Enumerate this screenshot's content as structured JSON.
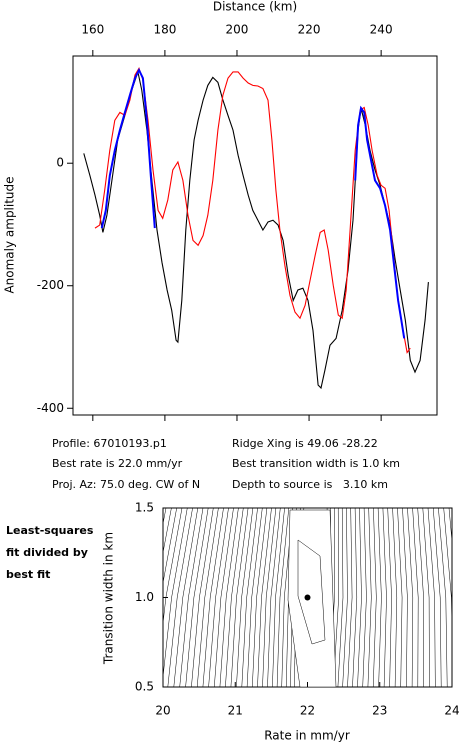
{
  "chart_data": [
    {
      "type": "line",
      "x_label": "Distance (km)",
      "y_label": "Anomaly amplitude",
      "xlim": [
        154.5,
        255.5
      ],
      "xticks": [
        160,
        180,
        200,
        220,
        240
      ],
      "ylim": [
        -411,
        175
      ],
      "yticks": [
        -400,
        -200,
        0
      ],
      "series": [
        {
          "color": "#000000",
          "x": [
            157.5,
            159.2,
            160.6,
            161.9,
            162.8,
            163.9,
            165.3,
            166.9,
            168.9,
            170.8,
            172.5,
            173.6,
            175.0,
            176.4,
            177.8,
            179.2,
            180.6,
            181.9,
            183.1,
            183.6,
            184.7,
            185.8,
            186.9,
            188.1,
            189.2,
            190.6,
            191.9,
            193.3,
            194.7,
            196.1,
            197.5,
            198.9,
            200.3,
            201.7,
            203.1,
            204.4,
            205.8,
            207.2,
            208.6,
            210.0,
            211.4,
            212.8,
            214.2,
            215.6,
            216.9,
            218.3,
            219.7,
            221.1,
            222.5,
            223.3,
            224.4,
            225.8,
            227.5,
            229.2,
            230.8,
            232.2,
            233.6,
            234.4,
            235.6,
            236.9,
            238.3,
            239.7,
            241.1,
            242.5,
            243.9,
            245.3,
            246.7,
            248.1,
            249.4,
            250.8,
            252.2,
            253.1
          ],
          "values": [
            16,
            -20,
            -52,
            -85,
            -113,
            -85,
            -28,
            38,
            78,
            119,
            149,
            119,
            54,
            -28,
            -109,
            -162,
            -207,
            -240,
            -289,
            -292,
            -224,
            -109,
            -28,
            38,
            70,
            103,
            127,
            140,
            132,
            103,
            78,
            54,
            13,
            -20,
            -52,
            -77,
            -93,
            -109,
            -96,
            -93,
            -101,
            -126,
            -183,
            -224,
            -207,
            -204,
            -224,
            -273,
            -362,
            -367,
            -338,
            -297,
            -286,
            -240,
            -175,
            -93,
            54,
            90,
            62,
            21,
            -11,
            -36,
            -69,
            -101,
            -158,
            -207,
            -256,
            -322,
            -341,
            -322,
            -256,
            -194
          ]
        },
        {
          "color": "#ff0000",
          "x": [
            160.6,
            161.9,
            163.3,
            164.7,
            166.1,
            167.5,
            168.9,
            170.3,
            171.7,
            172.8,
            173.9,
            175.3,
            176.7,
            178.1,
            179.4,
            180.8,
            182.2,
            183.6,
            185.0,
            186.4,
            187.8,
            189.2,
            190.6,
            191.9,
            193.3,
            194.7,
            196.1,
            197.5,
            198.9,
            200.3,
            201.7,
            203.1,
            204.4,
            205.8,
            207.2,
            208.6,
            209.7,
            210.8,
            211.9,
            213.3,
            214.7,
            216.1,
            217.5,
            218.9,
            220.3,
            221.7,
            223.1,
            224.2,
            225.3,
            226.7,
            228.1,
            229.2,
            230.3,
            231.4,
            232.8,
            234.2,
            235.3,
            236.4,
            237.5,
            238.9,
            240.0,
            241.1,
            242.2,
            243.3,
            244.7,
            246.1,
            247.2,
            248.1
          ],
          "values": [
            -106,
            -101,
            -44,
            21,
            70,
            83,
            78,
            103,
            144,
            155,
            136,
            70,
            -11,
            -77,
            -90,
            -60,
            -11,
            2,
            -28,
            -85,
            -126,
            -134,
            -118,
            -85,
            -28,
            54,
            111,
            139,
            149,
            149,
            139,
            131,
            127,
            126,
            122,
            103,
            38,
            -44,
            -109,
            -167,
            -216,
            -243,
            -253,
            -232,
            -191,
            -150,
            -113,
            -109,
            -142,
            -199,
            -248,
            -253,
            -207,
            -109,
            21,
            87,
            91,
            62,
            21,
            -20,
            -36,
            -41,
            -77,
            -142,
            -224,
            -273,
            -309,
            -302
          ]
        },
        {
          "color": "#0000ff",
          "x": [
            162.5,
            163.6,
            164.7,
            166.1,
            167.5,
            168.9,
            170.3,
            171.7,
            172.8,
            173.9,
            175.0,
            176.1,
            177.2,
            null,
            232.8,
            233.6,
            234.4,
            235.3,
            236.1,
            237.2,
            238.3,
            239.7,
            241.1,
            242.5,
            243.6,
            244.7,
            245.6,
            246.4
          ],
          "values": [
            -106,
            -77,
            -20,
            21,
            54,
            83,
            111,
            139,
            152,
            139,
            70,
            -20,
            -106,
            null,
            -28,
            62,
            90,
            83,
            38,
            5,
            -28,
            -41,
            -69,
            -109,
            -167,
            -224,
            -256,
            -286
          ]
        }
      ]
    },
    {
      "type": "contour",
      "x_label": "Rate in mm/yr",
      "y_label": "Transition width in km",
      "xlim": [
        20,
        24
      ],
      "xticks": [
        20,
        21,
        22,
        23,
        24
      ],
      "ylim": [
        0.5,
        1.5
      ],
      "yticks": [
        {
          "value": 0.5,
          "label": "0.5"
        },
        {
          "value": 1.0,
          "label": "1.0"
        },
        {
          "value": 1.5,
          "label": "1.5"
        }
      ],
      "best_fit": {
        "x": 22.0,
        "y": 1.0
      },
      "side_text": [
        "Least-squares",
        "fit divided by",
        "best fit"
      ]
    }
  ],
  "profile_info": [
    "Profile: 67010193.p1",
    "Ridge Xing is 49.06 -28.22",
    "Best rate is 22.0 mm/yr",
    "Best transition width is 1.0 km",
    "Proj. Az: 75.0 deg. CW of N",
    "Depth to source is   3.10 km"
  ]
}
